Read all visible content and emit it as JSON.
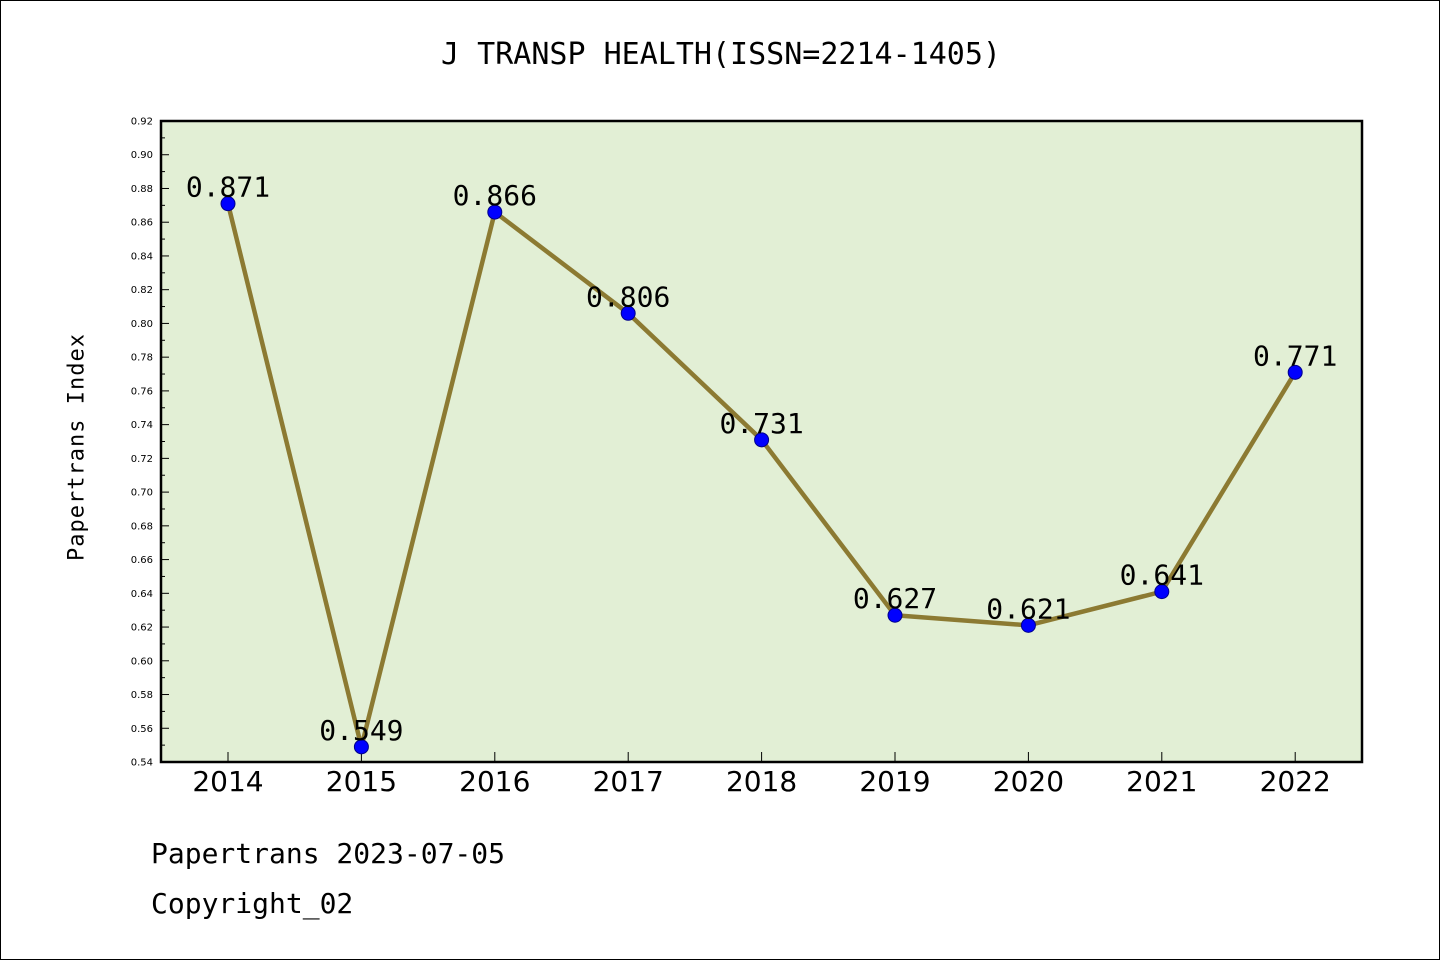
{
  "chart_data": {
    "type": "line",
    "title": "J TRANSP HEALTH(ISSN=2214-1405)",
    "xlabel": "",
    "ylabel": "Papertrans Index",
    "categories": [
      "2014",
      "2015",
      "2016",
      "2017",
      "2018",
      "2019",
      "2020",
      "2021",
      "2022"
    ],
    "series": [
      {
        "values": [
          0.871,
          0.549,
          0.866,
          0.806,
          0.731,
          0.627,
          0.621,
          0.641,
          0.771
        ],
        "data_labels": [
          "0.871",
          "0.549",
          "0.866",
          "0.806",
          "0.731",
          "0.627",
          "0.621",
          "0.641",
          "0.771"
        ]
      }
    ],
    "ylim": [
      0.54,
      0.92
    ],
    "yticks": [
      "0.54",
      "0.56",
      "0.58",
      "0.60",
      "0.62",
      "0.64",
      "0.66",
      "0.68",
      "0.70",
      "0.72",
      "0.74",
      "0.76",
      "0.78",
      "0.80",
      "0.82",
      "0.84",
      "0.86",
      "0.88",
      "0.90",
      "0.92"
    ],
    "grid": false,
    "legend": "none",
    "colors": {
      "plot_background": "#e2efd5",
      "line": "#8c7a32",
      "marker": "#0000ff",
      "marker_edge": "#00008b"
    }
  },
  "footer": {
    "date_line": "Papertrans 2023-07-05",
    "copyright": "Copyright_02"
  }
}
